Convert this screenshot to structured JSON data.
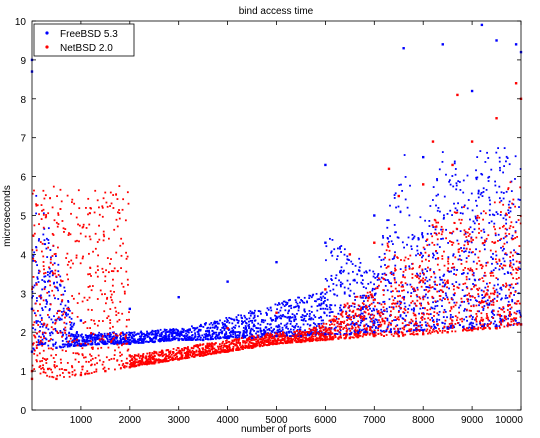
{
  "chart_data": {
    "type": "scatter",
    "title": "bind access time",
    "xlabel": "number of ports",
    "ylabel": "microseconds",
    "xlim": [
      0,
      10000
    ],
    "ylim": [
      0,
      10
    ],
    "x_ticks": [
      1000,
      2000,
      3000,
      4000,
      5000,
      6000,
      7000,
      8000,
      9000,
      10000
    ],
    "x_tick_labels": [
      "1000",
      "2000",
      "3000",
      "4000",
      "5000",
      "6000",
      "7000",
      "8000",
      "9000",
      "10000"
    ],
    "y_ticks": [
      0,
      1,
      2,
      3,
      4,
      5,
      6,
      7,
      8,
      9,
      10
    ],
    "y_tick_labels": [
      "0",
      "1",
      "2",
      "3",
      "4",
      "5",
      "6",
      "7",
      "8",
      "9",
      "10"
    ],
    "grid": false,
    "legend_position": "top-left",
    "series": [
      {
        "name": "FreeBSD 5.3",
        "color": "#0000ff",
        "marker": "point",
        "points": [
          [
            0,
            1.5
          ],
          [
            200,
            1.7
          ],
          [
            500,
            1.6
          ],
          [
            1000,
            1.65
          ],
          [
            1500,
            1.7
          ],
          [
            2000,
            1.7
          ],
          [
            2500,
            1.75
          ],
          [
            3000,
            1.8
          ],
          [
            3500,
            1.8
          ],
          [
            4000,
            1.85
          ],
          [
            4500,
            1.85
          ],
          [
            5000,
            1.9
          ],
          [
            5500,
            1.9
          ],
          [
            6000,
            1.95
          ],
          [
            6500,
            1.95
          ],
          [
            7000,
            2.0
          ],
          [
            7500,
            2.0
          ],
          [
            8000,
            2.05
          ],
          [
            8500,
            2.1
          ],
          [
            9000,
            2.1
          ],
          [
            9500,
            2.15
          ],
          [
            10000,
            2.2
          ],
          [
            0,
            2.6
          ],
          [
            1000,
            2.3
          ],
          [
            2000,
            2.6
          ],
          [
            3000,
            2.9
          ],
          [
            4000,
            3.3
          ],
          [
            5000,
            3.8
          ],
          [
            6000,
            4.3
          ],
          [
            7000,
            5.0
          ],
          [
            8000,
            6.5
          ],
          [
            9000,
            8.2
          ],
          [
            10000,
            9.2
          ],
          [
            6000,
            6.3
          ],
          [
            7600,
            9.3
          ],
          [
            8400,
            9.4
          ],
          [
            9200,
            9.9
          ],
          [
            9500,
            9.5
          ],
          [
            9900,
            9.4
          ],
          [
            0,
            9.0
          ],
          [
            0,
            8.7
          ]
        ]
      },
      {
        "name": "NetBSD 2.0",
        "color": "#ff0000",
        "marker": "point",
        "points": [
          [
            0,
            0.8
          ],
          [
            500,
            0.8
          ],
          [
            1000,
            0.9
          ],
          [
            1500,
            1.0
          ],
          [
            2000,
            1.1
          ],
          [
            2500,
            1.2
          ],
          [
            3000,
            1.3
          ],
          [
            3500,
            1.4
          ],
          [
            4000,
            1.5
          ],
          [
            4500,
            1.6
          ],
          [
            5000,
            1.7
          ],
          [
            5500,
            1.75
          ],
          [
            6000,
            1.8
          ],
          [
            6500,
            1.85
          ],
          [
            7000,
            1.9
          ],
          [
            7500,
            1.9
          ],
          [
            8000,
            1.95
          ],
          [
            8500,
            2.0
          ],
          [
            9000,
            2.05
          ],
          [
            9500,
            2.1
          ],
          [
            10000,
            2.2
          ],
          [
            0,
            1.0
          ],
          [
            2000,
            1.4
          ],
          [
            4000,
            2.1
          ],
          [
            5000,
            2.5
          ],
          [
            6000,
            3.1
          ],
          [
            6500,
            4.0
          ],
          [
            7000,
            4.3
          ],
          [
            7500,
            5.5
          ],
          [
            8000,
            5.8
          ],
          [
            8200,
            6.9
          ],
          [
            9000,
            6.9
          ],
          [
            9500,
            7.5
          ],
          [
            10000,
            8.0
          ],
          [
            8700,
            8.1
          ],
          [
            9900,
            8.4
          ],
          [
            7300,
            6.2
          ],
          [
            8600,
            6.3
          ]
        ]
      }
    ]
  }
}
